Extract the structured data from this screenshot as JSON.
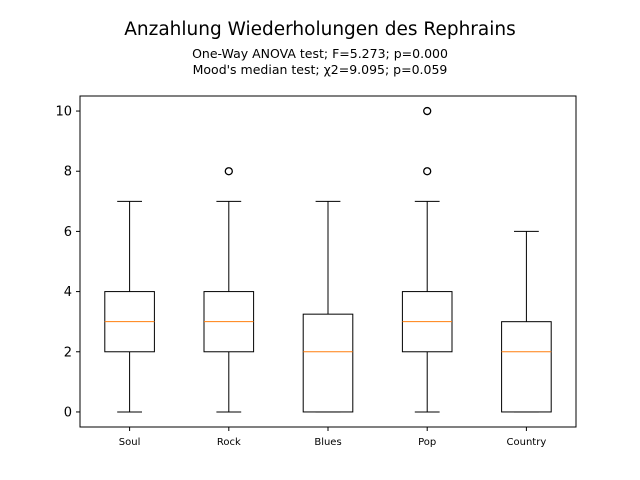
{
  "chart_data": {
    "type": "box",
    "title": "Anzahlung Wiederholungen des Rephrains",
    "subtitle_lines": [
      "One-Way ANOVA test; F=5.273; p=0.000",
      "Mood's median test; χ2=9.095; p=0.059"
    ],
    "xlabel": "",
    "ylabel": "",
    "ylim": [
      -0.5,
      10.5
    ],
    "yticks": [
      0,
      2,
      4,
      6,
      8,
      10
    ],
    "categories": [
      "Soul",
      "Rock",
      "Blues",
      "Pop",
      "Country"
    ],
    "boxes": [
      {
        "label": "Soul",
        "whisker_low": 0,
        "q1": 2,
        "median": 3,
        "q3": 4,
        "whisker_high": 7,
        "outliers": []
      },
      {
        "label": "Rock",
        "whisker_low": 0,
        "q1": 2,
        "median": 3,
        "q3": 4,
        "whisker_high": 7,
        "outliers": [
          8
        ]
      },
      {
        "label": "Blues",
        "whisker_low": 0,
        "q1": 0,
        "median": 2,
        "q3": 3.25,
        "whisker_high": 7,
        "outliers": []
      },
      {
        "label": "Pop",
        "whisker_low": 0,
        "q1": 2,
        "median": 3,
        "q3": 4,
        "whisker_high": 7,
        "outliers": [
          8,
          10
        ]
      },
      {
        "label": "Country",
        "whisker_low": 0,
        "q1": 0,
        "median": 2,
        "q3": 3,
        "whisker_high": 6,
        "outliers": []
      }
    ],
    "grid": false,
    "colors": {
      "box": "#000000",
      "median": "#ff7f0e",
      "outlier": "#000000"
    }
  }
}
